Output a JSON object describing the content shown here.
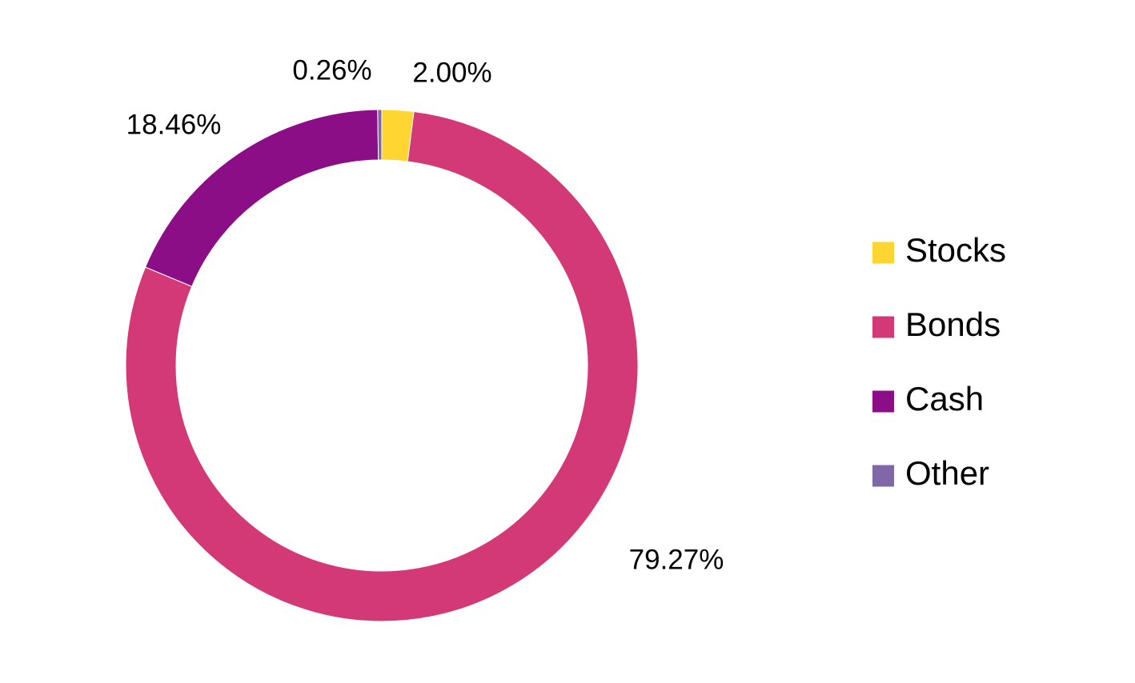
{
  "chart_data": {
    "type": "pie",
    "donut": true,
    "title": "",
    "legend_position": "right",
    "series": [
      {
        "name": "Stocks",
        "value": 2.0,
        "label": "2.00%",
        "color": "#FFD531"
      },
      {
        "name": "Bonds",
        "value": 79.27,
        "label": "79.27%",
        "color": "#D43977"
      },
      {
        "name": "Cash",
        "value": 18.46,
        "label": "18.46%",
        "color": "#8B0E87"
      },
      {
        "name": "Other",
        "value": 0.26,
        "label": "0.26%",
        "color": "#8068A8"
      }
    ]
  }
}
